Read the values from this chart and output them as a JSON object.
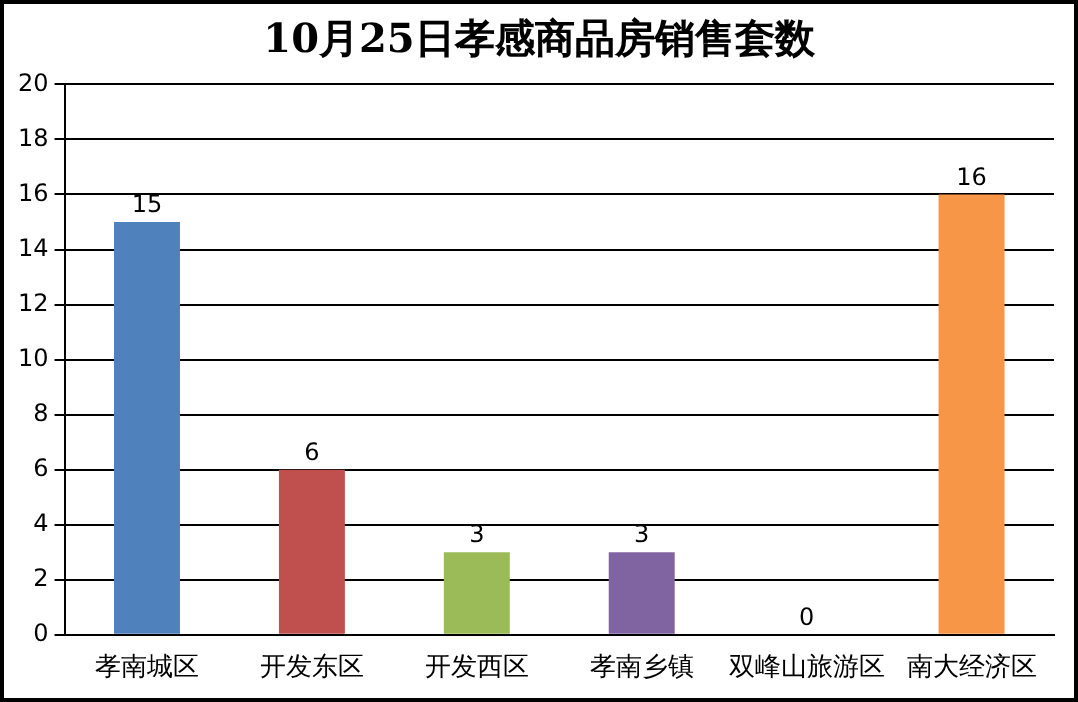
{
  "chart_data": {
    "type": "bar",
    "title": "10月25日孝感商品房销售套数",
    "categories": [
      "孝南城区",
      "开发东区",
      "开发西区",
      "孝南乡镇",
      "双峰山旅游区",
      "南大经济区"
    ],
    "values": [
      15,
      6,
      3,
      3,
      0,
      16
    ],
    "colors": [
      "#4f81bd",
      "#c0504d",
      "#9bbb59",
      "#8064a2",
      "#4bacc6",
      "#f79646"
    ],
    "ylim": [
      0,
      20
    ],
    "yticks": [
      0,
      2,
      4,
      6,
      8,
      10,
      12,
      14,
      16,
      18,
      20
    ],
    "grid": "y",
    "data_labels": true,
    "legend": false
  }
}
